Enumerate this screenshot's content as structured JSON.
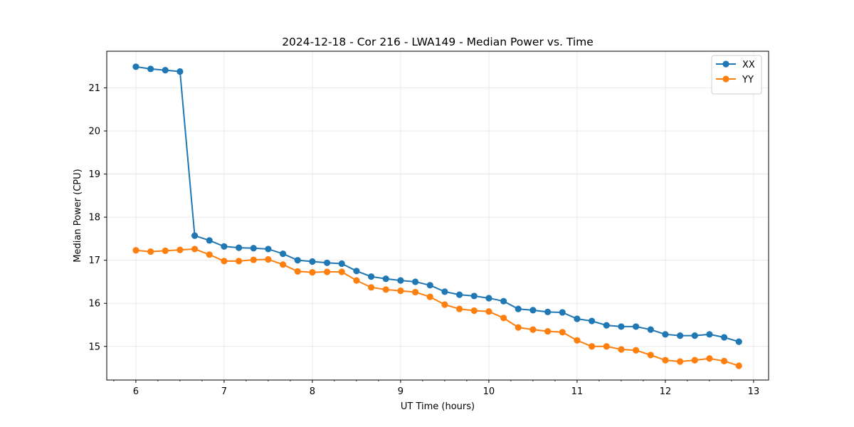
{
  "chart_data": {
    "type": "line",
    "title": "2024-12-18 - Cor 216 - LWA149 - Median Power vs. Time",
    "xlabel": "UT Time (hours)",
    "ylabel": "Median Power (CPU)",
    "xlim": [
      5.67,
      13.17
    ],
    "ylim": [
      14.22,
      21.85
    ],
    "xticks": [
      6,
      7,
      8,
      9,
      10,
      11,
      12,
      13
    ],
    "yticks": [
      15,
      16,
      17,
      18,
      19,
      20,
      21
    ],
    "grid": true,
    "legend_position": "top-right",
    "x": [
      6.0,
      6.1667,
      6.3333,
      6.5,
      6.6667,
      6.8333,
      7.0,
      7.1667,
      7.3333,
      7.5,
      7.6667,
      7.8333,
      8.0,
      8.1667,
      8.3333,
      8.5,
      8.6667,
      8.8333,
      9.0,
      9.1667,
      9.3333,
      9.5,
      9.6667,
      9.8333,
      10.0,
      10.1667,
      10.3333,
      10.5,
      10.6667,
      10.8333,
      11.0,
      11.1667,
      11.3333,
      11.5,
      11.6667,
      11.8333,
      12.0,
      12.1667,
      12.3333,
      12.5,
      12.6667,
      12.8333
    ],
    "series": [
      {
        "name": "XX",
        "color": "#1f77b4",
        "values": [
          21.49,
          21.44,
          21.41,
          21.38,
          17.57,
          17.46,
          17.32,
          17.29,
          17.28,
          17.26,
          17.15,
          17.0,
          16.97,
          16.94,
          16.92,
          16.75,
          16.62,
          16.57,
          16.53,
          16.5,
          16.42,
          16.27,
          16.2,
          16.17,
          16.12,
          16.05,
          15.87,
          15.84,
          15.8,
          15.79,
          15.64,
          15.59,
          15.49,
          15.46,
          15.46,
          15.39,
          15.28,
          15.25,
          15.25,
          15.28,
          15.21,
          15.11
        ]
      },
      {
        "name": "YY",
        "color": "#ff7f0e",
        "values": [
          17.23,
          17.2,
          17.22,
          17.24,
          17.26,
          17.13,
          16.98,
          16.98,
          17.01,
          17.02,
          16.9,
          16.74,
          16.72,
          16.73,
          16.73,
          16.53,
          16.37,
          16.32,
          16.29,
          16.26,
          16.15,
          15.97,
          15.87,
          15.83,
          15.81,
          15.66,
          15.44,
          15.39,
          15.35,
          15.33,
          15.14,
          15.0,
          15.0,
          14.93,
          14.91,
          14.8,
          14.68,
          14.65,
          14.68,
          14.72,
          14.66,
          14.55
        ]
      }
    ]
  }
}
